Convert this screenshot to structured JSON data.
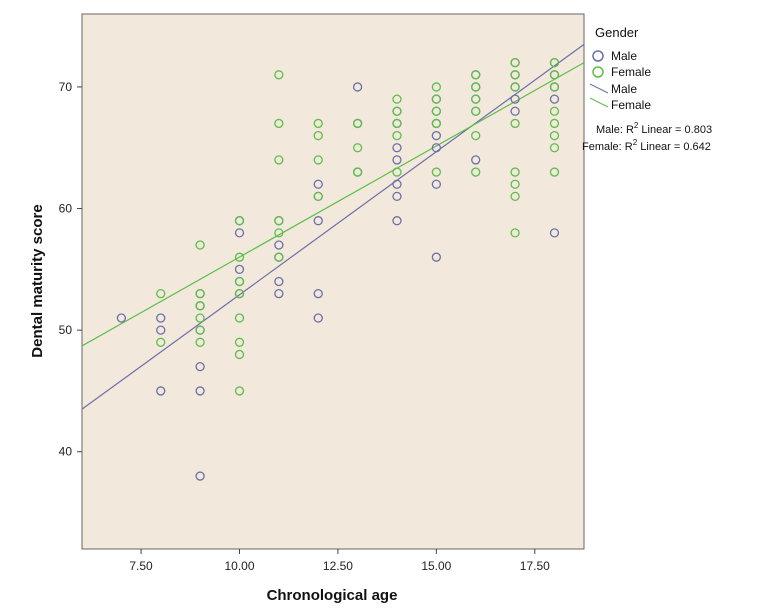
{
  "chart_data": {
    "type": "scatter",
    "xlabel": "Chronological age",
    "ylabel": "Dental maturity score",
    "xlim": [
      6.0,
      18.75
    ],
    "ylim": [
      32.0,
      76.0
    ],
    "xticks": [
      7.5,
      10.0,
      12.5,
      15.0,
      17.5
    ],
    "xtick_labels": [
      "7.50",
      "10.00",
      "12.50",
      "15.00",
      "17.50"
    ],
    "yticks": [
      40,
      50,
      60,
      70
    ],
    "ytick_labels": [
      "40",
      "50",
      "60",
      "70"
    ],
    "background": "#f3e8dc",
    "legend": {
      "title": "Gender",
      "position": "right",
      "items": [
        {
          "label": "Male",
          "kind": "marker",
          "color": "#6b6fa8"
        },
        {
          "label": "Female",
          "kind": "marker",
          "color": "#5cbf4a"
        },
        {
          "label": "Male",
          "kind": "line",
          "color": "#6b6fa8"
        },
        {
          "label": "Female",
          "kind": "line",
          "color": "#5cbf4a"
        }
      ]
    },
    "annotations": {
      "male_r2": {
        "prefix": "Male: R",
        "sup": "2",
        "suffix": " Linear = 0.803"
      },
      "female_r2": {
        "prefix": "Female: R",
        "sup": "2",
        "suffix": " Linear = 0.642"
      }
    },
    "series": [
      {
        "name": "Male",
        "color": "#6b6fa8",
        "points": [
          [
            7,
            51
          ],
          [
            8,
            51
          ],
          [
            8,
            50
          ],
          [
            8,
            45
          ],
          [
            9,
            47
          ],
          [
            9,
            45
          ],
          [
            9,
            38
          ],
          [
            9,
            50
          ],
          [
            9,
            52
          ],
          [
            9,
            53
          ],
          [
            10,
            58
          ],
          [
            10,
            55
          ],
          [
            10,
            54
          ],
          [
            10,
            53
          ],
          [
            10,
            59
          ],
          [
            11,
            59
          ],
          [
            11,
            57
          ],
          [
            11,
            56
          ],
          [
            11,
            54
          ],
          [
            11,
            53
          ],
          [
            12,
            62
          ],
          [
            12,
            61
          ],
          [
            12,
            59
          ],
          [
            12,
            53
          ],
          [
            12,
            51
          ],
          [
            13,
            70
          ],
          [
            13,
            63
          ],
          [
            13,
            67
          ],
          [
            14,
            67
          ],
          [
            14,
            65
          ],
          [
            14,
            64
          ],
          [
            14,
            62
          ],
          [
            14,
            61
          ],
          [
            14,
            59
          ],
          [
            14,
            68
          ],
          [
            15,
            69
          ],
          [
            15,
            68
          ],
          [
            15,
            67
          ],
          [
            15,
            66
          ],
          [
            15,
            65
          ],
          [
            15,
            62
          ],
          [
            15,
            56
          ],
          [
            16,
            71
          ],
          [
            16,
            70
          ],
          [
            16,
            69
          ],
          [
            16,
            68
          ],
          [
            16,
            64
          ],
          [
            17,
            72
          ],
          [
            17,
            71
          ],
          [
            17,
            70
          ],
          [
            17,
            69
          ],
          [
            17,
            68
          ],
          [
            18,
            72
          ],
          [
            18,
            71
          ],
          [
            18,
            70
          ],
          [
            18,
            69
          ],
          [
            18,
            58
          ]
        ],
        "fit": {
          "x": [
            6.0,
            18.75
          ],
          "y": [
            43.5,
            73.5
          ]
        }
      },
      {
        "name": "Female",
        "color": "#5cbf4a",
        "points": [
          [
            8,
            53
          ],
          [
            8,
            49
          ],
          [
            9,
            57
          ],
          [
            9,
            53
          ],
          [
            9,
            52
          ],
          [
            9,
            51
          ],
          [
            9,
            50
          ],
          [
            9,
            49
          ],
          [
            10,
            59
          ],
          [
            10,
            56
          ],
          [
            10,
            54
          ],
          [
            10,
            53
          ],
          [
            10,
            51
          ],
          [
            10,
            49
          ],
          [
            10,
            48
          ],
          [
            10,
            45
          ],
          [
            11,
            71
          ],
          [
            11,
            67
          ],
          [
            11,
            64
          ],
          [
            11,
            59
          ],
          [
            11,
            58
          ],
          [
            11,
            56
          ],
          [
            12,
            67
          ],
          [
            12,
            66
          ],
          [
            12,
            64
          ],
          [
            12,
            61
          ],
          [
            13,
            67
          ],
          [
            13,
            65
          ],
          [
            13,
            63
          ],
          [
            14,
            69
          ],
          [
            14,
            68
          ],
          [
            14,
            67
          ],
          [
            14,
            66
          ],
          [
            14,
            63
          ],
          [
            15,
            70
          ],
          [
            15,
            69
          ],
          [
            15,
            68
          ],
          [
            15,
            67
          ],
          [
            15,
            63
          ],
          [
            16,
            71
          ],
          [
            16,
            70
          ],
          [
            16,
            69
          ],
          [
            16,
            68
          ],
          [
            16,
            66
          ],
          [
            16,
            63
          ],
          [
            17,
            72
          ],
          [
            17,
            71
          ],
          [
            17,
            70
          ],
          [
            17,
            67
          ],
          [
            17,
            63
          ],
          [
            17,
            62
          ],
          [
            17,
            61
          ],
          [
            17,
            58
          ],
          [
            18,
            72
          ],
          [
            18,
            71
          ],
          [
            18,
            70
          ],
          [
            18,
            68
          ],
          [
            18,
            67
          ],
          [
            18,
            66
          ],
          [
            18,
            65
          ],
          [
            18,
            63
          ]
        ],
        "fit": {
          "x": [
            6.0,
            18.75
          ],
          "y": [
            48.7,
            72.0
          ]
        }
      }
    ]
  }
}
